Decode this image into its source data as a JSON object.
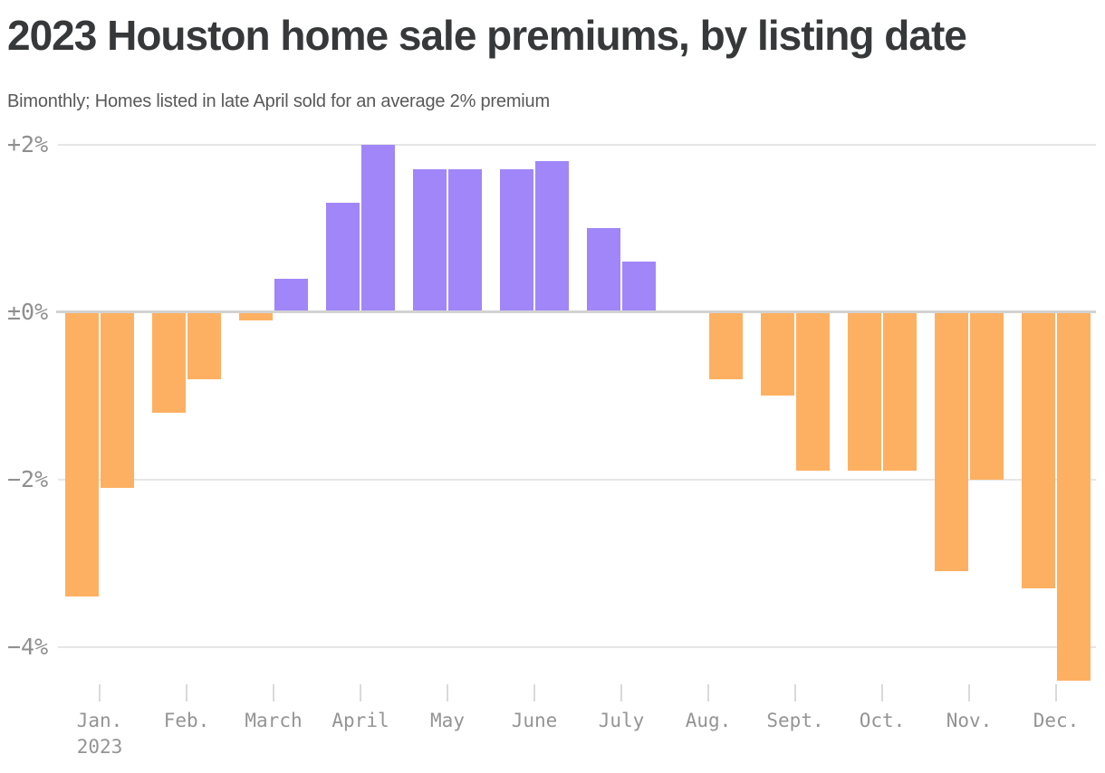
{
  "header": {
    "title": "2023 Houston home sale premiums, by listing date",
    "subtitle": "Bimonthly; Homes listed in late April sold for an average 2% premium"
  },
  "chart_data": {
    "type": "bar",
    "title": "2023 Houston home sale premiums, by listing date",
    "subtitle": "Bimonthly; Homes listed in late April sold for an average 2% premium",
    "unit": "percent premium",
    "year_label": "2023",
    "positive_color": "#a086f8",
    "negative_color": "#feb062",
    "grid_on": true,
    "ylim": [
      -4.6,
      2.2
    ],
    "y_axis": {
      "ticks": [
        {
          "label": "+2%",
          "value": 2
        },
        {
          "label": "±0%",
          "value": 0
        },
        {
          "label": "−2%",
          "value": -2
        },
        {
          "label": "−4%",
          "value": -4
        }
      ]
    },
    "months": [
      {
        "key": "jan",
        "label": "Jan.",
        "early": -3.4,
        "late": -2.1
      },
      {
        "key": "feb",
        "label": "Feb.",
        "early": -1.2,
        "late": -0.8
      },
      {
        "key": "march",
        "label": "March",
        "early": -0.1,
        "late": 0.4
      },
      {
        "key": "april",
        "label": "April",
        "early": 1.3,
        "late": 2.0
      },
      {
        "key": "may",
        "label": "May",
        "early": 1.7,
        "late": 1.7
      },
      {
        "key": "june",
        "label": "June",
        "early": 1.7,
        "late": 1.8
      },
      {
        "key": "july",
        "label": "July",
        "early": 1.0,
        "late": 0.6
      },
      {
        "key": "aug",
        "label": "Aug.",
        "early": null,
        "late": -0.8
      },
      {
        "key": "sept",
        "label": "Sept.",
        "early": -1.0,
        "late": -1.9
      },
      {
        "key": "oct",
        "label": "Oct.",
        "early": -1.9,
        "late": -1.9
      },
      {
        "key": "nov",
        "label": "Nov.",
        "early": -3.1,
        "late": -2.0
      },
      {
        "key": "dec",
        "label": "Dec.",
        "early": -3.3,
        "late": -4.4
      }
    ]
  }
}
